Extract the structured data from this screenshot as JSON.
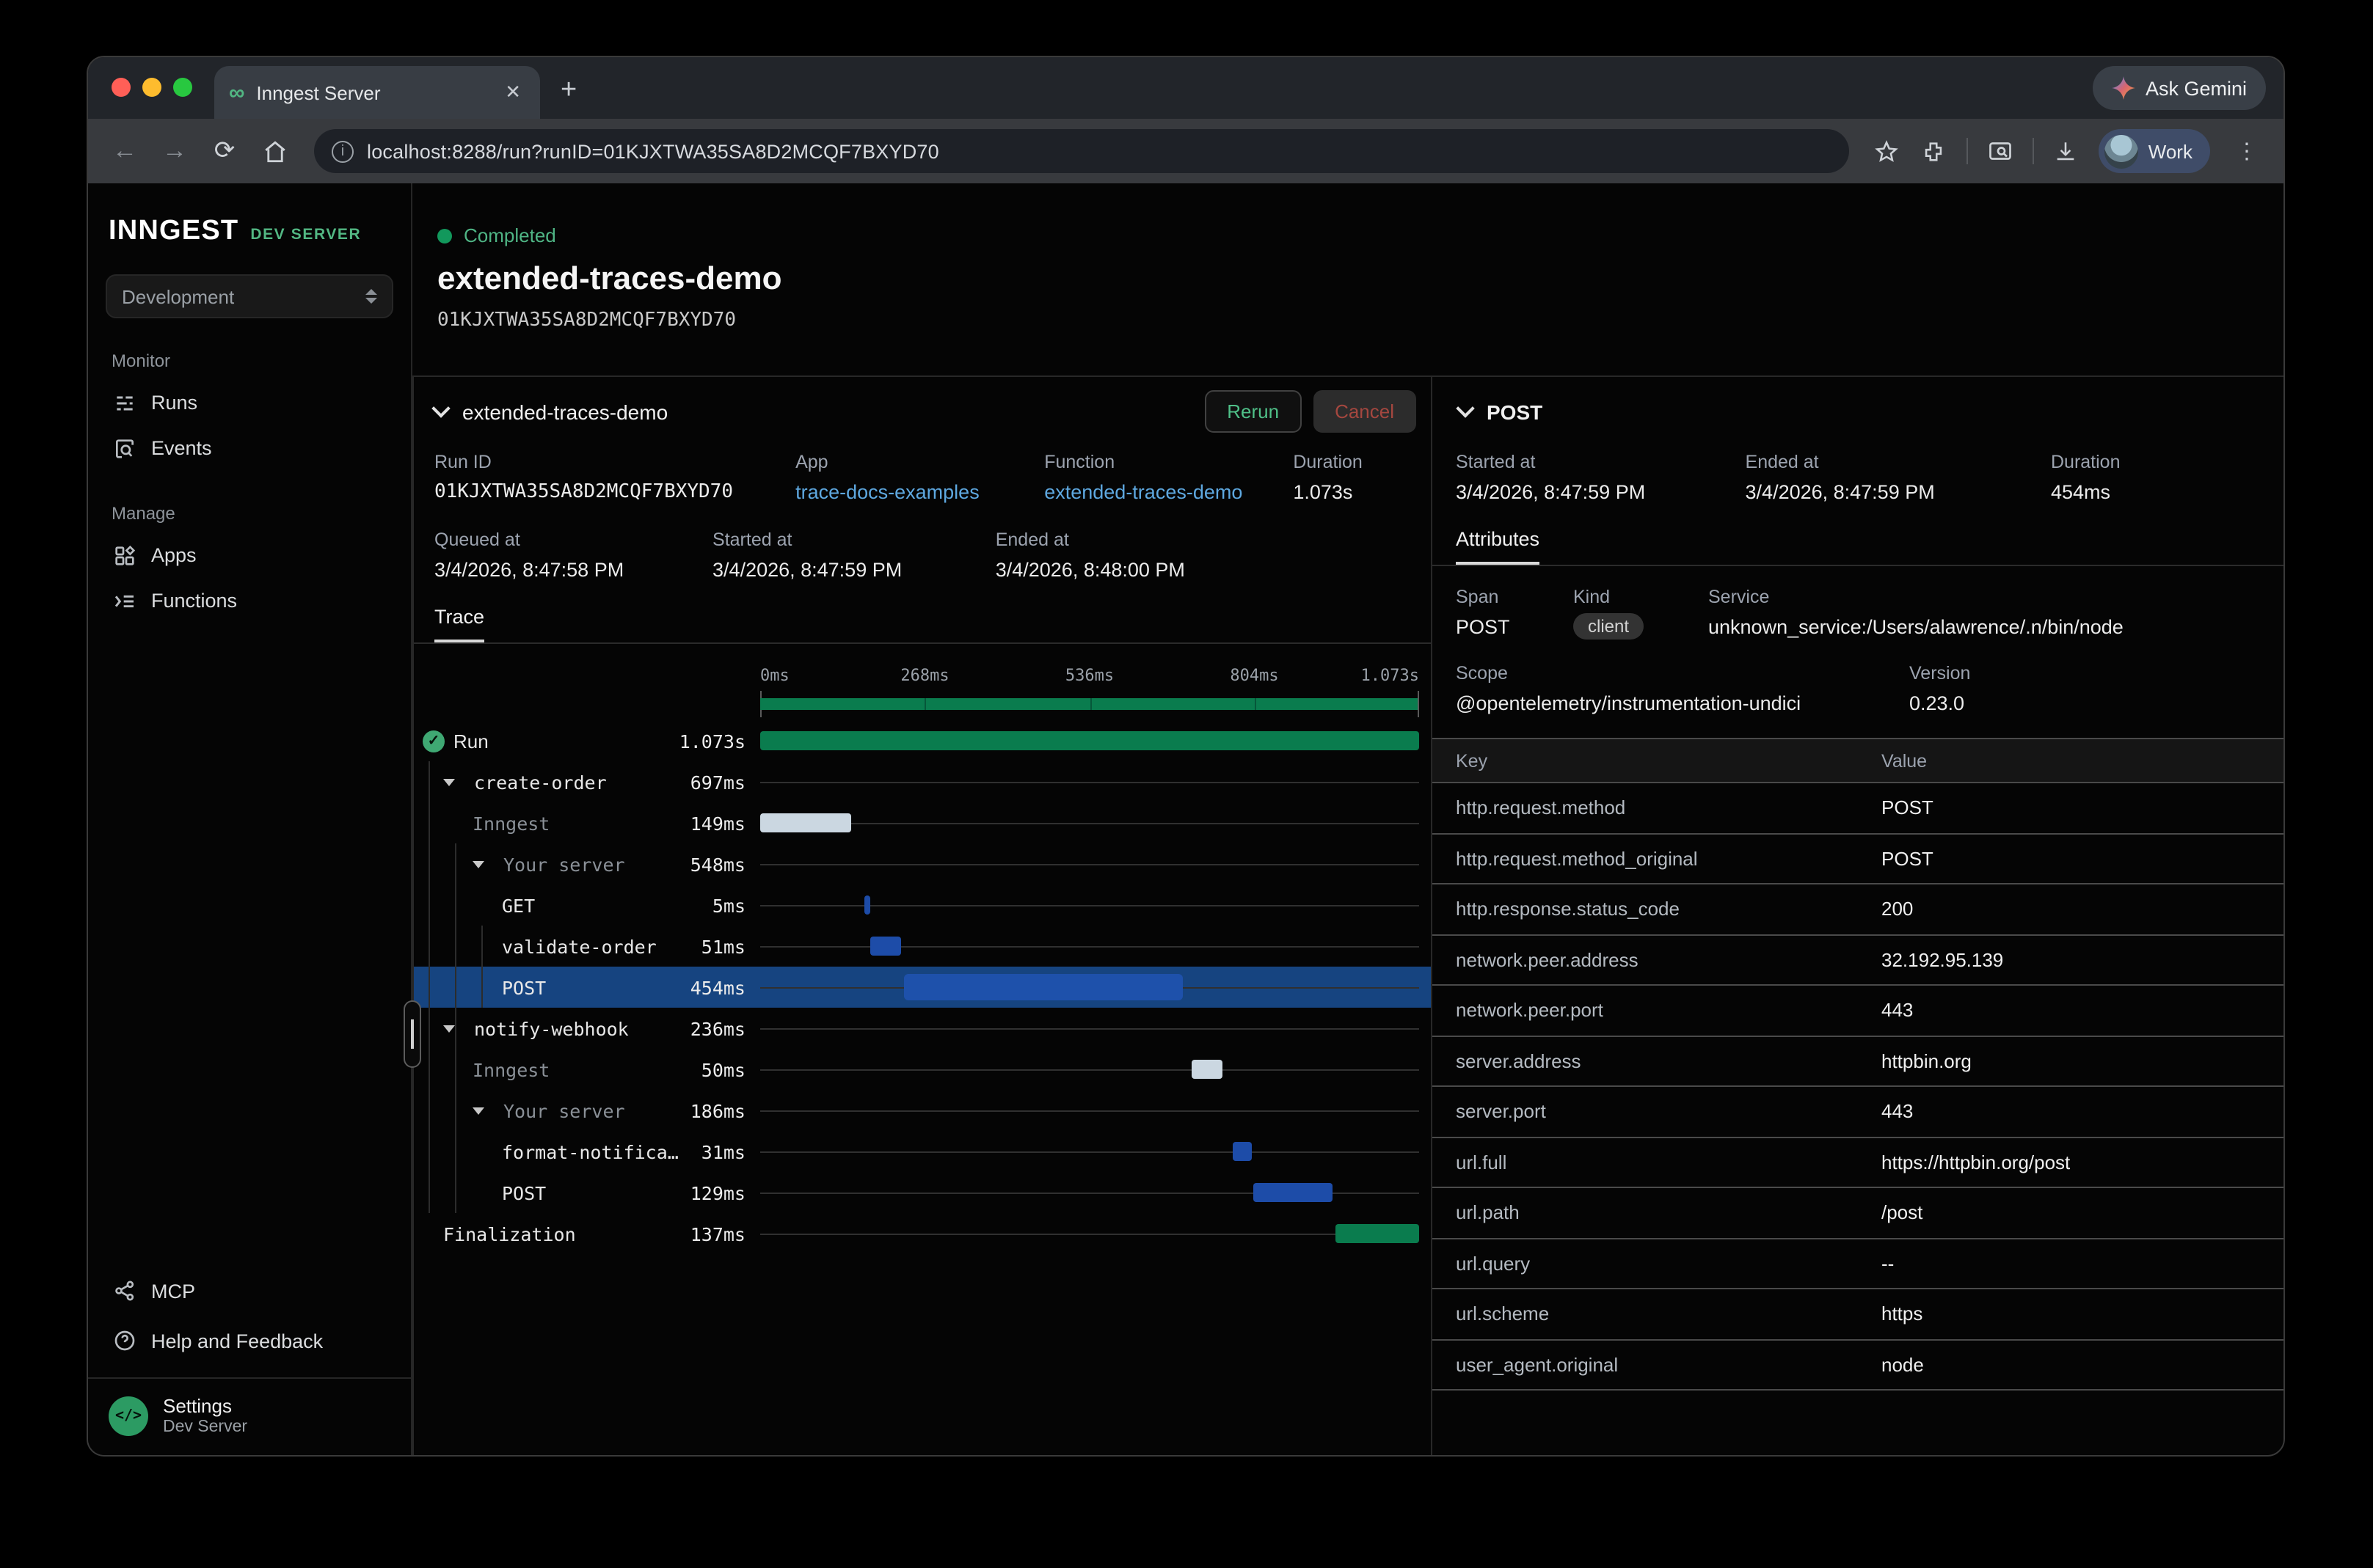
{
  "chrome": {
    "tab_title": "Inngest Server",
    "url": "localhost:8288/run?runID=01KJXTWA35SA8D2MCQF7BXYD70",
    "gemini_label": "Ask Gemini",
    "profile_label": "Work"
  },
  "sidebar": {
    "brand": "INNGEST",
    "badge": "DEV SERVER",
    "environment": "Development",
    "sections": [
      {
        "label": "Monitor",
        "items": [
          {
            "label": "Runs",
            "icon": "runs-icon"
          },
          {
            "label": "Events",
            "icon": "events-icon"
          }
        ]
      },
      {
        "label": "Manage",
        "items": [
          {
            "label": "Apps",
            "icon": "apps-icon"
          },
          {
            "label": "Functions",
            "icon": "functions-icon"
          }
        ]
      }
    ],
    "footer_items": [
      {
        "label": "MCP",
        "icon": "share-icon"
      },
      {
        "label": "Help and Feedback",
        "icon": "help-icon"
      }
    ],
    "settings": {
      "title": "Settings",
      "subtitle": "Dev Server",
      "icon": "code-icon",
      "icon_glyph": "</>"
    }
  },
  "run_header": {
    "status": "Completed",
    "title": "extended-traces-demo",
    "run_id": "01KJXTWA35SA8D2MCQF7BXYD70"
  },
  "trace_panel": {
    "title": "extended-traces-demo",
    "rerun_label": "Rerun",
    "cancel_label": "Cancel",
    "meta": {
      "run_id_label": "Run ID",
      "run_id": "01KJXTWA35SA8D2MCQF7BXYD70",
      "app_label": "App",
      "app": "trace-docs-examples",
      "function_label": "Function",
      "function": "extended-traces-demo",
      "duration_label": "Duration",
      "duration": "1.073s",
      "queued_label": "Queued at",
      "queued": "3/4/2026, 8:47:58 PM",
      "started_label": "Started at",
      "started": "3/4/2026, 8:47:59 PM",
      "ended_label": "Ended at",
      "ended": "3/4/2026, 8:48:00 PM"
    },
    "tab": "Trace",
    "timeline_ticks": [
      "0ms",
      "268ms",
      "536ms",
      "804ms",
      "1.073s"
    ],
    "rows": [
      {
        "name": "Run",
        "duration": "1.073s",
        "depth": 0,
        "icon": "check-icon",
        "chevron": false,
        "dim": false,
        "selected": false,
        "sans": true,
        "bar": {
          "start": 0,
          "width": 100,
          "color": "green"
        }
      },
      {
        "name": "create-order",
        "duration": "697ms",
        "depth": 1,
        "chevron": true,
        "dim": false,
        "selected": false,
        "bar": null
      },
      {
        "name": "Inngest",
        "duration": "149ms",
        "depth": 2,
        "chevron": false,
        "dim": true,
        "selected": false,
        "bar": {
          "start": 0,
          "width": 13.9,
          "color": "light"
        }
      },
      {
        "name": "Your server",
        "duration": "548ms",
        "depth": 2,
        "chevron": true,
        "dim": true,
        "selected": false,
        "bar": null
      },
      {
        "name": "GET",
        "duration": "5ms",
        "depth": 3,
        "chevron": false,
        "dim": false,
        "selected": false,
        "bar": {
          "start": 15.9,
          "width": 0.7,
          "color": "blue"
        }
      },
      {
        "name": "validate-order",
        "duration": "51ms",
        "depth": 3,
        "chevron": false,
        "dim": false,
        "selected": false,
        "bar": {
          "start": 16.6,
          "width": 4.8,
          "color": "blue"
        }
      },
      {
        "name": "POST",
        "duration": "454ms",
        "depth": 3,
        "chevron": false,
        "dim": false,
        "selected": true,
        "bar": {
          "start": 21.8,
          "width": 42.3,
          "color": "blue"
        }
      },
      {
        "name": "notify-webhook",
        "duration": "236ms",
        "depth": 1,
        "chevron": true,
        "dim": false,
        "selected": false,
        "bar": null
      },
      {
        "name": "Inngest",
        "duration": "50ms",
        "depth": 2,
        "chevron": false,
        "dim": true,
        "selected": false,
        "bar": {
          "start": 65.4,
          "width": 4.7,
          "color": "light"
        }
      },
      {
        "name": "Your server",
        "duration": "186ms",
        "depth": 2,
        "chevron": true,
        "dim": true,
        "selected": false,
        "bar": null
      },
      {
        "name": "format-notifica…",
        "duration": "31ms",
        "depth": 3,
        "chevron": false,
        "dim": false,
        "selected": false,
        "bar": {
          "start": 71.8,
          "width": 2.9,
          "color": "blue"
        }
      },
      {
        "name": "POST",
        "duration": "129ms",
        "depth": 3,
        "chevron": false,
        "dim": false,
        "selected": false,
        "bar": {
          "start": 74.9,
          "width": 12.0,
          "color": "blue"
        }
      },
      {
        "name": "Finalization",
        "duration": "137ms",
        "depth": 1,
        "chevron": false,
        "dim": false,
        "selected": false,
        "bar": {
          "start": 87.3,
          "width": 12.7,
          "color": "green"
        }
      }
    ]
  },
  "span_panel": {
    "title": "POST",
    "started_label": "Started at",
    "started": "3/4/2026, 8:47:59 PM",
    "ended_label": "Ended at",
    "ended": "3/4/2026, 8:47:59 PM",
    "duration_label": "Duration",
    "duration": "454ms",
    "tab": "Attributes",
    "span_label": "Span",
    "span": "POST",
    "kind_label": "Kind",
    "kind": "client",
    "service_label": "Service",
    "service": "unknown_service:/Users/alawrence/.n/bin/node",
    "scope_label": "Scope",
    "scope": "@opentelemetry/instrumentation-undici",
    "version_label": "Version",
    "version": "0.23.0",
    "table": {
      "key_header": "Key",
      "value_header": "Value",
      "rows": [
        {
          "key": "http.request.method",
          "value": "POST"
        },
        {
          "key": "http.request.method_original",
          "value": "POST"
        },
        {
          "key": "http.response.status_code",
          "value": "200"
        },
        {
          "key": "network.peer.address",
          "value": "32.192.95.139"
        },
        {
          "key": "network.peer.port",
          "value": "443"
        },
        {
          "key": "server.address",
          "value": "httpbin.org"
        },
        {
          "key": "server.port",
          "value": "443"
        },
        {
          "key": "url.full",
          "value": "https://httpbin.org/post"
        },
        {
          "key": "url.path",
          "value": "/post"
        },
        {
          "key": "url.query",
          "value": "--"
        },
        {
          "key": "url.scheme",
          "value": "https"
        },
        {
          "key": "user_agent.original",
          "value": "node"
        }
      ]
    }
  },
  "colors": {
    "bar_green": "#0a7c4e",
    "bar_light": "#cbd7e1",
    "bar_blue": "#1d4ca8",
    "bar_blue_selected": "#1e51ab",
    "selected_row": "#164480",
    "status_green": "#12985c",
    "green_text": "#4fb585",
    "link_blue": "#5ea8e0",
    "cancel_red": "#a4473f",
    "brand_green": "#52b783"
  }
}
